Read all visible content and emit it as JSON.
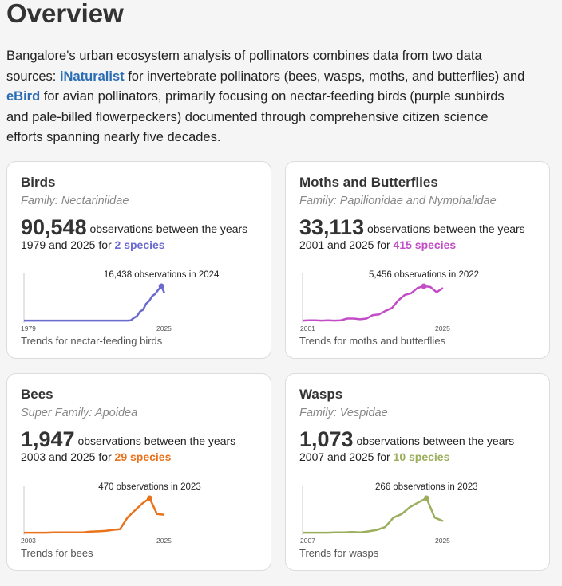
{
  "page": {
    "title": "Overview",
    "intro": {
      "before1": "Bangalore's urban ecosystem analysis of pollinators combines data from two data sources: ",
      "link1": "iNaturalist",
      "mid": " for invertebrate pollinators (bees, wasps, moths, and butterflies) and ",
      "link2": "eBird",
      "after": " for avian pollinators, primarily focusing on nectar-feeding birds (purple sunbirds and pale-billed flowerpeckers) documented through comprehensive citizen science efforts spanning nearly five decades."
    }
  },
  "cards": [
    {
      "name": "Birds",
      "family": "Family: Nectariniidae",
      "count": "90,548",
      "text1": " observations between the years",
      "text2a": "1979 and 2025 for ",
      "species": "2 species",
      "color": "#6b6bcf",
      "peak_label": "16,438 observations in 2024",
      "start_year": "1979",
      "end_year": "2025",
      "caption": "Trends for nectar-feeding birds",
      "trend": [
        0.02,
        0.02,
        0.02,
        0.02,
        0.02,
        0.02,
        0.02,
        0.02,
        0.02,
        0.02,
        0.02,
        0.02,
        0.02,
        0.02,
        0.02,
        0.02,
        0.02,
        0.02,
        0.02,
        0.02,
        0.02,
        0.02,
        0.02,
        0.02,
        0.02,
        0.02,
        0.02,
        0.02,
        0.02,
        0.02,
        0.02,
        0.02,
        0.02,
        0.02,
        0.02,
        0.03,
        0.1,
        0.15,
        0.28,
        0.33,
        0.5,
        0.58,
        0.72,
        0.78,
        0.9,
        1.0,
        0.8
      ],
      "peak_index": 45
    },
    {
      "name": "Moths and Butterflies",
      "family": "Family: Papilionidae and Nymphalidae",
      "count": "33,113",
      "text1": " observations between the years",
      "text2a": "2001 and 2025 for ",
      "species": "415 species",
      "color": "#c24dc7",
      "peak_label": "5,456 observations in 2022",
      "start_year": "2001",
      "end_year": "2025",
      "caption": "Trends for moths and butterflies",
      "trend": [
        0.02,
        0.03,
        0.03,
        0.02,
        0.03,
        0.02,
        0.03,
        0.08,
        0.08,
        0.06,
        0.08,
        0.18,
        0.2,
        0.3,
        0.38,
        0.6,
        0.75,
        0.8,
        0.95,
        1.0,
        0.98,
        0.83,
        0.95
      ],
      "peak_index": 19
    },
    {
      "name": "Bees",
      "family": "Super Family: Apoidea",
      "count": "1,947",
      "text1": " observations between the years",
      "text2a": "2003 and 2025 for ",
      "species": "29 species",
      "color": "#e8731c",
      "peak_label": "470 observations in 2023",
      "start_year": "2003",
      "end_year": "2025",
      "caption": "Trends for bees",
      "trend": [
        0.02,
        0.02,
        0.02,
        0.02,
        0.03,
        0.03,
        0.03,
        0.03,
        0.03,
        0.05,
        0.06,
        0.07,
        0.1,
        0.12,
        0.45,
        0.65,
        0.85,
        1.0,
        0.55,
        0.53
      ],
      "peak_index": 17
    },
    {
      "name": "Wasps",
      "family": "Family: Vespidae",
      "count": "1,073",
      "text1": " observations between the years",
      "text2a": "2007 and 2025 for ",
      "species": "10 species",
      "color": "#9bae5b",
      "peak_label": "266 observations in 2023",
      "start_year": "2007",
      "end_year": "2025",
      "caption": "Trends for wasps",
      "trend": [
        0.02,
        0.02,
        0.02,
        0.02,
        0.03,
        0.03,
        0.04,
        0.03,
        0.06,
        0.1,
        0.18,
        0.45,
        0.55,
        0.75,
        0.88,
        1.0,
        0.45,
        0.35
      ],
      "peak_index": 15
    }
  ]
}
